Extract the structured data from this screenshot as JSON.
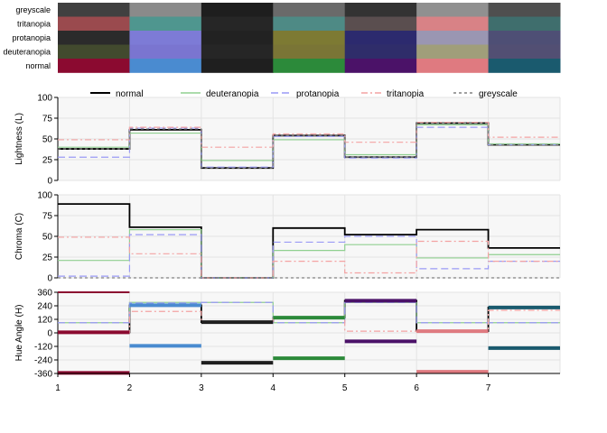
{
  "chart_data": [
    {
      "type": "heatmap",
      "rows": [
        "greyscale",
        "tritanopia",
        "protanopia",
        "deuteranopia",
        "normal"
      ],
      "columns": [
        1,
        2,
        3,
        4,
        5,
        6,
        7
      ],
      "colors": {
        "greyscale": [
          "#404040",
          "#8a8a8a",
          "#1e1e1e",
          "#6a6a6a",
          "#333333",
          "#909090",
          "#4f4f4f"
        ],
        "tritanopia": [
          "#9a4a4e",
          "#4f968f",
          "#262626",
          "#4e8a85",
          "#5a4e4f",
          "#d88286",
          "#3f6e6d"
        ],
        "protanopia": [
          "#2b2b2b",
          "#7d7bd6",
          "#222222",
          "#7d7a33",
          "#2c2a6e",
          "#9a96b2",
          "#4e4f75"
        ],
        "deuteranopia": [
          "#424a2e",
          "#7a75d0",
          "#262626",
          "#7a7536",
          "#2f2d6a",
          "#a09e7a",
          "#524f73"
        ],
        "normal": [
          "#8b0a30",
          "#4a8bd0",
          "#1f1f1f",
          "#2c8a3a",
          "#4b1268",
          "#df7a80",
          "#1a5a6e"
        ]
      }
    },
    {
      "type": "line",
      "step": "post",
      "ylabel": "Lightness (L)",
      "ylim": [
        0,
        100
      ],
      "yticks": [
        0,
        25,
        50,
        75,
        100
      ],
      "legend_position": "top",
      "series": [
        {
          "name": "normal",
          "color": "#000000",
          "dash": "solid",
          "values": [
            38,
            61,
            15,
            54,
            28,
            69,
            43
          ]
        },
        {
          "name": "deuteranopia",
          "color": "#90d090",
          "dash": "solid",
          "values": [
            40,
            57,
            24,
            49,
            31,
            67,
            44
          ]
        },
        {
          "name": "protanopia",
          "color": "#9a9af5",
          "dash": "dashed",
          "values": [
            28,
            63,
            16,
            53,
            27,
            64,
            43
          ]
        },
        {
          "name": "tritanopia",
          "color": "#f4a3a3",
          "dash": "dashdot",
          "values": [
            49,
            64,
            40,
            56,
            46,
            70,
            52
          ]
        },
        {
          "name": "greyscale",
          "color": "#808080",
          "dash": "dotted",
          "values": [
            38,
            62,
            15,
            54,
            28,
            69,
            43
          ]
        }
      ]
    },
    {
      "type": "line",
      "step": "post",
      "ylabel": "Chroma (C)",
      "ylim": [
        0,
        100
      ],
      "yticks": [
        0,
        25,
        50,
        75,
        100
      ],
      "series": [
        {
          "name": "normal",
          "color": "#000000",
          "dash": "solid",
          "values": [
            89,
            61,
            0,
            60,
            52,
            58,
            36
          ]
        },
        {
          "name": "deuteranopia",
          "color": "#90d090",
          "dash": "solid",
          "values": [
            21,
            58,
            0,
            33,
            40,
            24,
            28
          ]
        },
        {
          "name": "protanopia",
          "color": "#9a9af5",
          "dash": "dashed",
          "values": [
            2,
            52,
            0,
            43,
            50,
            11,
            20
          ]
        },
        {
          "name": "tritanopia",
          "color": "#f4a3a3",
          "dash": "dashdot",
          "values": [
            49,
            29,
            0,
            20,
            6,
            44,
            20
          ]
        },
        {
          "name": "greyscale",
          "color": "#808080",
          "dash": "dotted",
          "values": [
            0,
            0,
            0,
            0,
            0,
            0,
            0
          ]
        }
      ]
    },
    {
      "type": "line",
      "step": "post",
      "ylabel": "Hue Angle (H)",
      "ylim": [
        -360,
        360
      ],
      "yticks": [
        -360,
        -240,
        -120,
        0,
        120,
        240,
        360
      ],
      "xticks": [
        1,
        2,
        3,
        4,
        5,
        6,
        7
      ],
      "xlim": [
        1,
        8
      ],
      "series": [
        {
          "name": "normal",
          "color": "#000000",
          "dash": "solid",
          "values": [
            5,
            245,
            95,
            135,
            285,
            15,
            225
          ]
        },
        {
          "name": "deuteranopia",
          "color": "#90d090",
          "dash": "solid",
          "values": [
            90,
            270,
            270,
            90,
            270,
            90,
            90
          ]
        },
        {
          "name": "protanopia",
          "color": "#9a9af5",
          "dash": "dashed",
          "values": [
            90,
            265,
            270,
            90,
            270,
            90,
            90
          ]
        },
        {
          "name": "tritanopia",
          "color": "#f4a3a3",
          "dash": "dashdot",
          "values": [
            5,
            190,
            100,
            140,
            15,
            10,
            200
          ]
        }
      ]
    }
  ]
}
